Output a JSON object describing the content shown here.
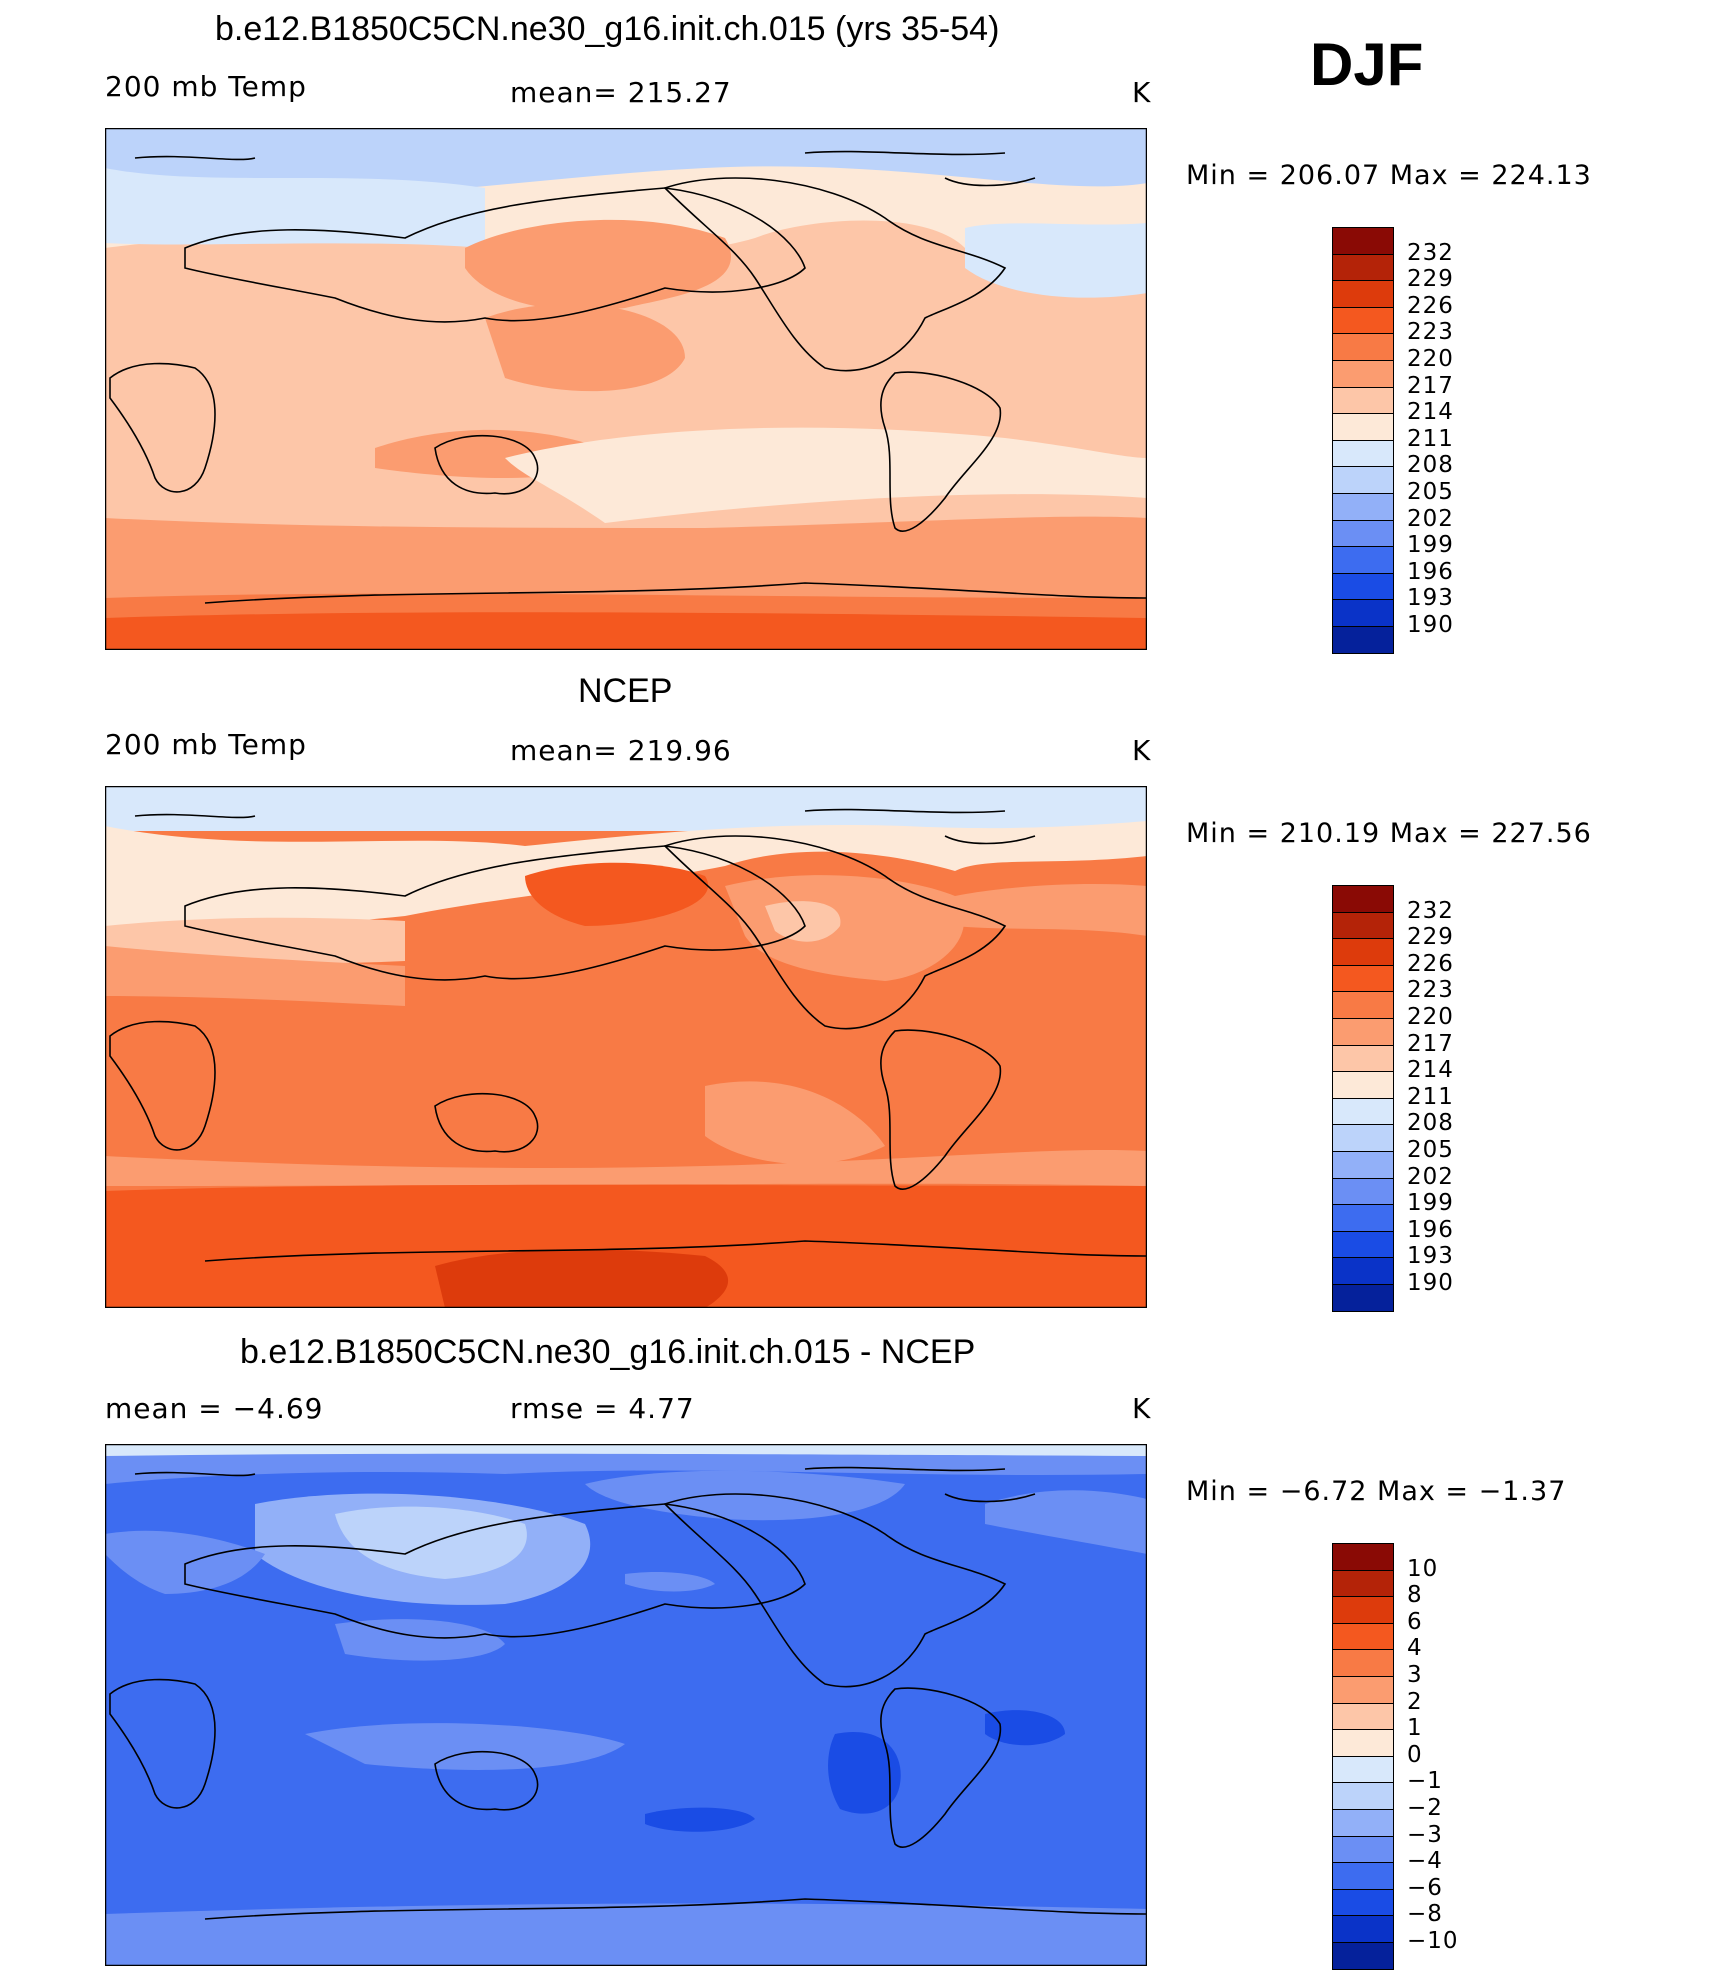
{
  "season": "DJF",
  "panels": [
    {
      "title": "b.e12.B1850C5CN.ne30_g16.init.ch.015 (yrs 35-54)",
      "left_label": "200 mb Temp",
      "center_label": "mean= 215.27",
      "units": "K",
      "minmax": "Min = 206.07 Max = 224.13",
      "colorbar_labels": [
        "232",
        "229",
        "226",
        "223",
        "220",
        "217",
        "214",
        "211",
        "208",
        "205",
        "202",
        "199",
        "196",
        "193",
        "190"
      ]
    },
    {
      "title": "NCEP",
      "left_label": "200 mb Temp",
      "center_label": "mean= 219.96",
      "units": "K",
      "minmax": "Min = 210.19 Max = 227.56",
      "colorbar_labels": [
        "232",
        "229",
        "226",
        "223",
        "220",
        "217",
        "214",
        "211",
        "208",
        "205",
        "202",
        "199",
        "196",
        "193",
        "190"
      ]
    },
    {
      "title": "b.e12.B1850C5CN.ne30_g16.init.ch.015 - NCEP",
      "left_label": "mean =   −4.69",
      "center_label": "rmse =    4.77",
      "units": "K",
      "minmax": "Min =  −6.72 Max =  −1.37",
      "colorbar_labels": [
        "10",
        "8",
        "6",
        "4",
        "3",
        "2",
        "1",
        "0",
        "−1",
        "−2",
        "−3",
        "−4",
        "−6",
        "−8",
        "−10"
      ]
    }
  ],
  "colors": {
    "levels": [
      "#8a0a05",
      "#b42308",
      "#dd3b0c",
      "#f4581f",
      "#f87a45",
      "#fb9c70",
      "#fdc6a8",
      "#fde9d8",
      "#d8e8fb",
      "#bcd3fa",
      "#92b0f8",
      "#6b8ff4",
      "#3d6cf0",
      "#1a4ce5",
      "#0a33c8",
      "#05219b"
    ]
  }
}
